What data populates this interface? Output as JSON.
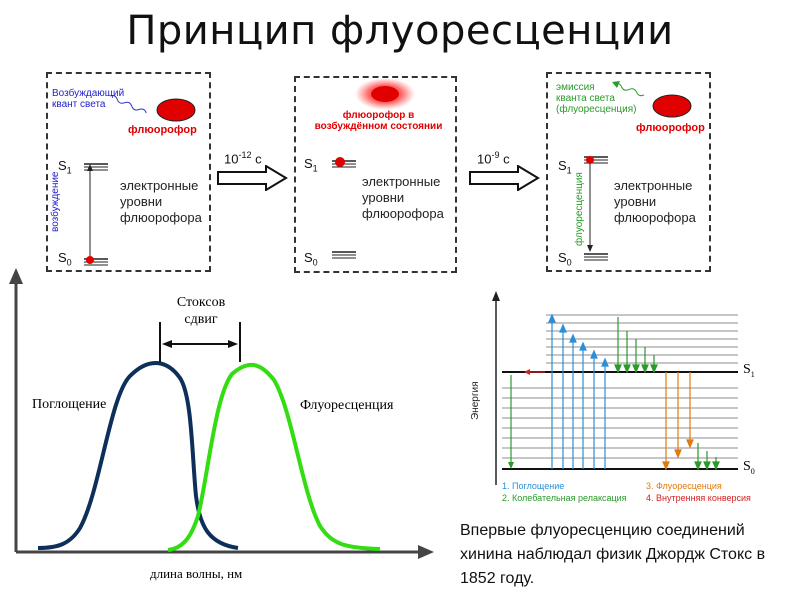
{
  "title": "Принцип флуоресценции",
  "panels": {
    "p1": {
      "excite_label": "Возбуждающий\nквант света",
      "fluorophore": "флюорофор",
      "levels_text": "электронные\nуровни\nфлюорофора",
      "s1": "S",
      "s1_sub": "1",
      "s0": "S",
      "s0_sub": "0",
      "vertical": "возбуждение"
    },
    "p2": {
      "fluorophore": "флюорофор в\nвозбуждённом состоянии",
      "levels_text": "электронные\nуровни\nфлюорофора",
      "s1": "S",
      "s1_sub": "1",
      "s0": "S",
      "s0_sub": "0"
    },
    "p3": {
      "emission_label": "эмиссия\nкванта света\n(флуоресценция)",
      "fluorophore": "флюорофор",
      "levels_text": "электронные\nуровни\nфлюорофора",
      "s1": "S",
      "s1_sub": "1",
      "s0": "S",
      "s0_sub": "0",
      "vertical": "флуоресценция"
    },
    "t1_base": "10",
    "t1_exp": "-12",
    "t1_unit": " с",
    "t2_base": "10",
    "t2_exp": "-9",
    "t2_unit": " с"
  },
  "spectrum": {
    "stokes": "Стоксов\nсдвиг",
    "absorption": "Поглощение",
    "fluorescence": "Флуоресценция",
    "xlabel": "длина волны, нм",
    "colors": {
      "absorption": "#0d2f5a",
      "fluorescence": "#33dd11"
    }
  },
  "jablonski": {
    "ylabel": "Энергия",
    "s1": "S",
    "s1_sub": "1",
    "s0": "S",
    "s0_sub": "0",
    "legend": [
      {
        "label": "1. Поглощение",
        "color": "#2a8fd6"
      },
      {
        "label": "2. Колебательная релаксация",
        "color": "#2a9a2a"
      },
      {
        "label": "3. Флуоресценция",
        "color": "#e07b10"
      },
      {
        "label": "4. Внутренняя конверсия",
        "color": "#d62020"
      }
    ]
  },
  "note": "Впервые флуоресценцию соединений хинина наблюдал физик Джордж Стокс в 1852 году."
}
